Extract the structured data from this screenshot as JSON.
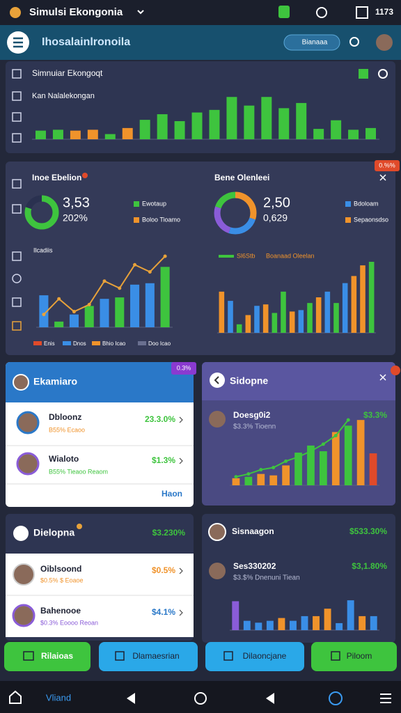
{
  "status_bar": {
    "app_name": "Simulsi Ekongonia",
    "time": "1173"
  },
  "app_bar": {
    "title": "Ihosalainlronoila",
    "button": "Bianaaa"
  },
  "overview": {
    "title": "Simnuiar Ekongoqt",
    "subtitle": "Kan Nalalekongan",
    "chart": {
      "type": "bar",
      "ylim": [
        0,
        100
      ],
      "values": [
        20,
        22,
        20,
        22,
        12,
        26,
        45,
        58,
        42,
        62,
        68,
        98,
        78,
        98,
        72,
        84,
        24,
        44,
        22,
        26
      ],
      "colors": [
        "#3ec43e",
        "#3ec43e",
        "#f0932b",
        "#f0932b",
        "#3ec43e",
        "#f0932b",
        "#3ec43e",
        "#3ec43e",
        "#3ec43e",
        "#3ec43e",
        "#3ec43e",
        "#3ec43e",
        "#3ec43e",
        "#3ec43e",
        "#3ec43e",
        "#3ec43e",
        "#3ec43e",
        "#3ec43e",
        "#3ec43e",
        "#3ec43e"
      ]
    }
  },
  "stats": {
    "badge": "0.%%",
    "left": {
      "title": "Inoe Ebelion",
      "value": "3,53",
      "sub": "202%",
      "legend": [
        "Ewotaup",
        "Boloo Tioamo"
      ],
      "donut": {
        "type": "donut",
        "values": [
          80,
          20
        ],
        "colors": [
          "#3ec43e",
          "#2a3150"
        ]
      },
      "chart_label": "Ilcadiis",
      "chart": {
        "type": "bar_line",
        "ylim": [
          0,
          100
        ],
        "values": [
          45,
          8,
          18,
          30,
          40,
          42,
          60,
          62,
          85
        ],
        "colors": [
          "#3a8ee6",
          "#3ec43e",
          "#3a8ee6",
          "#3ec43e",
          "#3a8ee6",
          "#3ec43e",
          "#3a8ee6",
          "#3a8ee6",
          "#3ec43e"
        ],
        "line": [
          18,
          40,
          22,
          32,
          65,
          55,
          88,
          78,
          100
        ],
        "line_color": "#e8a23a"
      },
      "chart_legend": [
        "Enis",
        "Dnos",
        "Bhio Icao",
        "Doo Icao"
      ]
    },
    "right": {
      "title": "Bene Olenleei",
      "value": "2,50",
      "sub": "0,629",
      "legend": [
        "Bdoloam",
        "Sepaonsdso"
      ],
      "donut": {
        "type": "donut",
        "values": [
          30,
          25,
          25,
          20
        ],
        "colors": [
          "#f0932b",
          "#3a8ee6",
          "#8a5cd8",
          "#3ec43e"
        ]
      },
      "chart_legend": [
        "Sl6Stb",
        "Boanaad Oleelan"
      ],
      "chart": {
        "type": "bar",
        "ylim": [
          0,
          100
        ],
        "values": [
          58,
          45,
          12,
          25,
          38,
          40,
          28,
          58,
          30,
          32,
          42,
          50,
          58,
          42,
          70,
          80,
          95,
          100
        ],
        "colors": [
          "#f0932b",
          "#3a8ee6",
          "#3ec43e",
          "#f0932b",
          "#3a8ee6",
          "#f0932b",
          "#3ec43e",
          "#3ec43e",
          "#f0932b",
          "#3a8ee6",
          "#3ec43e",
          "#f0932b",
          "#3a8ee6",
          "#3ec43e",
          "#3a8ee6",
          "#f0932b",
          "#f0932b",
          "#3ec43e"
        ]
      }
    }
  },
  "list_a": {
    "title": "Ekamiaro",
    "badge": "0.3%",
    "items": [
      {
        "name": "Dbloonz",
        "sub": "B55% Ecaoo",
        "value": "23.3.0%"
      },
      {
        "name": "Wialoto",
        "sub": "B55% Tieaoo Reaom",
        "value": "$1.3%"
      }
    ],
    "footer": "Haon"
  },
  "detail_a": {
    "title": "Sidopne",
    "item": {
      "name": "Doesg0i2",
      "sub": "$3.3% Tioenn",
      "value": "$3.3%"
    },
    "chart": {
      "type": "bar_line",
      "ylim": [
        0,
        100
      ],
      "values": [
        10,
        12,
        16,
        14,
        28,
        46,
        56,
        48,
        75,
        84,
        92,
        45
      ],
      "colors": [
        "#f0932b",
        "#3ec43e",
        "#f0932b",
        "#f0932b",
        "#f0932b",
        "#3ec43e",
        "#3ec43e",
        "#3ec43e",
        "#f0932b",
        "#3ec43e",
        "#f0932b",
        "#e04a2a"
      ],
      "line": [
        12,
        16,
        22,
        25,
        34,
        40,
        48,
        58,
        70,
        92,
        null,
        null
      ],
      "line_color": "#3ec43e"
    }
  },
  "list_b": {
    "title": "Dielopna",
    "value": "$3.230%",
    "items": [
      {
        "name": "Oiblsoond",
        "sub": "$0.5% $ Eoaoe",
        "value": "$0.5%"
      },
      {
        "name": "Bahenooe",
        "sub": "$0.3% Eoooo Reoan",
        "value": "$4.1%"
      }
    ]
  },
  "detail_b": {
    "title": "Sisnaagon",
    "value": "$533.30%",
    "item": {
      "name": "Ses330202",
      "sub": "$3.$% Dnenuni Tiean",
      "value": "$3,1.80%"
    },
    "chart": {
      "type": "bar",
      "ylim": [
        0,
        100
      ],
      "values": [
        62,
        20,
        16,
        20,
        26,
        20,
        30,
        30,
        46,
        15,
        64,
        30,
        30
      ],
      "colors": [
        "#8a5cd8",
        "#3a8ee6",
        "#3a8ee6",
        "#3a8ee6",
        "#f0932b",
        "#3a8ee6",
        "#3a8ee6",
        "#f0932b",
        "#f0932b",
        "#3a8ee6",
        "#3a8ee6",
        "#f0932b",
        "#3a8ee6"
      ]
    }
  },
  "buttons": [
    "Rilaioas",
    "Dlamaesrian",
    "Dilaoncjane",
    "Piloom"
  ],
  "nav": {
    "label": "Vliand"
  }
}
